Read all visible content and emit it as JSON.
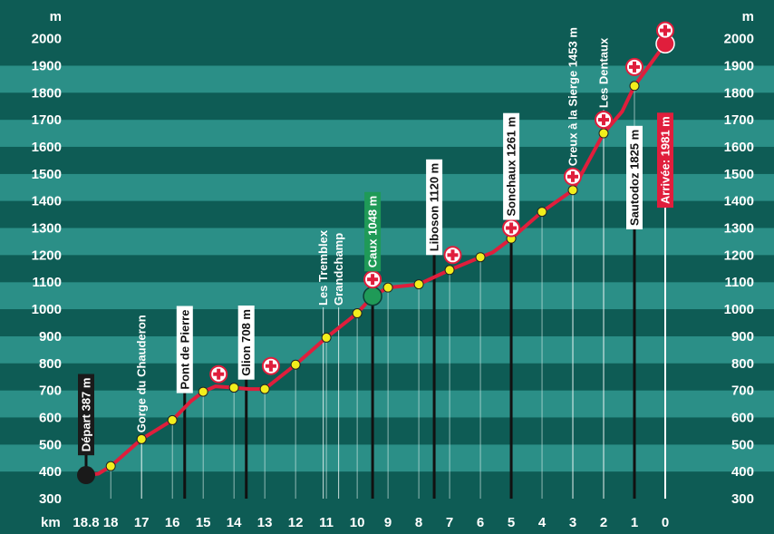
{
  "chart_data": {
    "type": "line",
    "colors": {
      "background": "#0e5c55",
      "band_light": "#2b8f87",
      "band_dark": "#0e5c55",
      "line": "#e01e3c",
      "point": "#f2ee1c",
      "start_marker": "#1a1a1a",
      "caux_marker": "#1f9a57",
      "finish_marker": "#e01e3c",
      "label_dark_bg": "#1a1a1a",
      "label_green_bg": "#1f9a57",
      "label_red_bg": "#e01e3c"
    },
    "y_unit_left": "m",
    "y_unit_right": "m",
    "x_unit": "km",
    "ylim": [
      300,
      2000
    ],
    "y_ticks": [
      "300",
      "400",
      "500",
      "600",
      "700",
      "800",
      "900",
      "1000",
      "1100",
      "1200",
      "1300",
      "1400",
      "1500",
      "1600",
      "1700",
      "1800",
      "1900",
      "2000"
    ],
    "x_ticks": [
      {
        "x": 18.8,
        "label": "18.8"
      },
      {
        "x": 18,
        "label": "18"
      },
      {
        "x": 17,
        "label": "17"
      },
      {
        "x": 16,
        "label": "16"
      },
      {
        "x": 15,
        "label": "15"
      },
      {
        "x": 14,
        "label": "14"
      },
      {
        "x": 13,
        "label": "13"
      },
      {
        "x": 12,
        "label": "12"
      },
      {
        "x": 11,
        "label": "11"
      },
      {
        "x": 10,
        "label": "10"
      },
      {
        "x": 9,
        "label": "9"
      },
      {
        "x": 8,
        "label": "8"
      },
      {
        "x": 7,
        "label": "7"
      },
      {
        "x": 6,
        "label": "6"
      },
      {
        "x": 5,
        "label": "5"
      },
      {
        "x": 4,
        "label": "4"
      },
      {
        "x": 3,
        "label": "3"
      },
      {
        "x": 2,
        "label": "2"
      },
      {
        "x": 1,
        "label": "1"
      },
      {
        "x": 0,
        "label": "0"
      }
    ],
    "profile": [
      {
        "km": 18.8,
        "alt": 387
      },
      {
        "km": 18.4,
        "alt": 392
      },
      {
        "km": 18,
        "alt": 420
      },
      {
        "km": 17,
        "alt": 520
      },
      {
        "km": 16,
        "alt": 590
      },
      {
        "km": 15.4,
        "alt": 660
      },
      {
        "km": 15,
        "alt": 695
      },
      {
        "km": 14.6,
        "alt": 715
      },
      {
        "km": 14,
        "alt": 710
      },
      {
        "km": 13.5,
        "alt": 705
      },
      {
        "km": 13,
        "alt": 705
      },
      {
        "km": 12,
        "alt": 795
      },
      {
        "km": 11,
        "alt": 895
      },
      {
        "km": 10,
        "alt": 985
      },
      {
        "km": 9.5,
        "alt": 1048
      },
      {
        "km": 9,
        "alt": 1080
      },
      {
        "km": 8,
        "alt": 1092
      },
      {
        "km": 7,
        "alt": 1145
      },
      {
        "km": 6,
        "alt": 1192
      },
      {
        "km": 5.6,
        "alt": 1210
      },
      {
        "km": 5,
        "alt": 1261
      },
      {
        "km": 4,
        "alt": 1360
      },
      {
        "km": 3,
        "alt": 1440
      },
      {
        "km": 2,
        "alt": 1650
      },
      {
        "km": 1.4,
        "alt": 1730
      },
      {
        "km": 1,
        "alt": 1825
      },
      {
        "km": 0,
        "alt": 1981
      }
    ],
    "points": [
      {
        "km": 18,
        "alt": 420
      },
      {
        "km": 17,
        "alt": 520
      },
      {
        "km": 16,
        "alt": 590
      },
      {
        "km": 15,
        "alt": 695
      },
      {
        "km": 14,
        "alt": 710
      },
      {
        "km": 13,
        "alt": 705
      },
      {
        "km": 12,
        "alt": 795
      },
      {
        "km": 11,
        "alt": 895
      },
      {
        "km": 10,
        "alt": 985
      },
      {
        "km": 9,
        "alt": 1080
      },
      {
        "km": 8,
        "alt": 1092
      },
      {
        "km": 7,
        "alt": 1145
      },
      {
        "km": 6,
        "alt": 1192
      },
      {
        "km": 5,
        "alt": 1261
      },
      {
        "km": 4,
        "alt": 1360
      },
      {
        "km": 3,
        "alt": 1440
      },
      {
        "km": 2,
        "alt": 1650
      },
      {
        "km": 1,
        "alt": 1825
      }
    ],
    "start": {
      "km": 18.8,
      "alt": 387
    },
    "caux": {
      "km": 9.5,
      "alt": 1048
    },
    "finish": {
      "km": 0,
      "alt": 1981
    },
    "first_aid": [
      {
        "km": 14.5,
        "alt": 760
      },
      {
        "km": 12.8,
        "alt": 790
      },
      {
        "km": 9.5,
        "alt": 1110
      },
      {
        "km": 6.9,
        "alt": 1200
      },
      {
        "km": 5,
        "alt": 1300
      },
      {
        "km": 3,
        "alt": 1490
      },
      {
        "km": 2,
        "alt": 1700
      },
      {
        "km": 1,
        "alt": 1895
      },
      {
        "km": 0,
        "alt": 2030
      }
    ],
    "labels": [
      {
        "text": "Départ  387 m",
        "km": 18.8,
        "bottom_alt": 460,
        "style": "dark",
        "pole_to_alt": 387
      },
      {
        "text": "Gorge du Chauderon",
        "km": 17,
        "bottom_alt": 530,
        "style": "plain",
        "pole_to_alt": 300
      },
      {
        "text": "Pont de Pierre",
        "km": 15.6,
        "bottom_alt": 690,
        "style": "white",
        "pole_to_alt": 300
      },
      {
        "text": "Glion 708 m",
        "km": 13.6,
        "bottom_alt": 740,
        "style": "white",
        "pole_to_alt": 300
      },
      {
        "text": "Les Tremblex",
        "km": 11.1,
        "bottom_alt": 1000,
        "style": "plain",
        "pole_to_alt": 300
      },
      {
        "text": "Grandchamp",
        "km": 10.6,
        "bottom_alt": 1000,
        "style": "plain",
        "pole_to_alt": 300
      },
      {
        "text": "Caux 1048 m",
        "km": 9.5,
        "bottom_alt": 1140,
        "style": "green",
        "pole_to_alt": 300
      },
      {
        "text": "Liboson 1120 m",
        "km": 7.5,
        "bottom_alt": 1200,
        "style": "white",
        "pole_to_alt": 300
      },
      {
        "text": "Sonchaux 1261 m",
        "km": 5,
        "bottom_alt": 1330,
        "style": "white",
        "pole_to_alt": 300
      },
      {
        "text": "Creux à la Sierge 1453 m",
        "km": 3,
        "bottom_alt": 1515,
        "style": "plain",
        "pole_to_alt": 300
      },
      {
        "text": "Les Dentaux",
        "km": 2,
        "bottom_alt": 1730,
        "style": "plain",
        "pole_to_alt": 300
      },
      {
        "text": "Sautodoz 1825 m",
        "km": 1,
        "bottom_alt": 1295,
        "style": "white",
        "pole_to_alt": 300
      },
      {
        "text": "Arrivée: 1981 m",
        "km": 0,
        "bottom_alt": 1375,
        "style": "red",
        "pole_to_alt": 300
      }
    ]
  }
}
